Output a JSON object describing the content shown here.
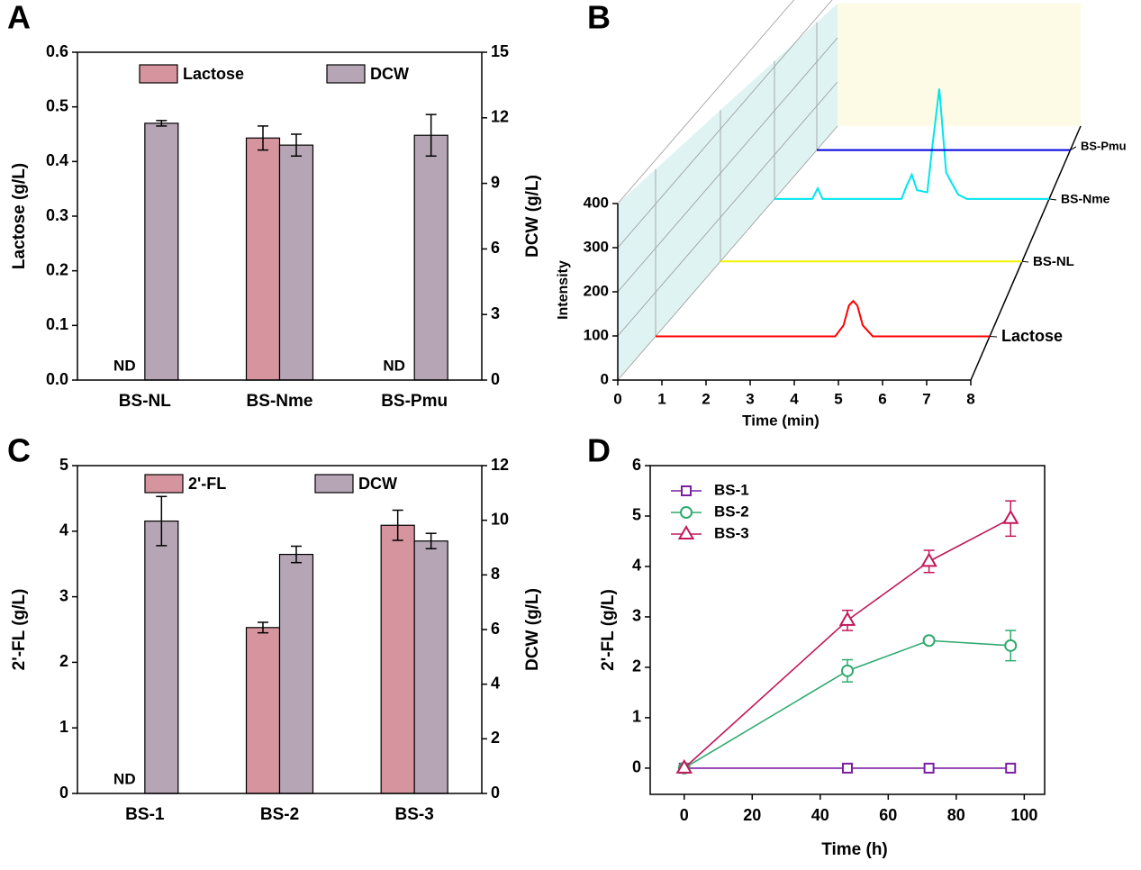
{
  "chart_data": [
    {
      "type": "bar",
      "panel": "A",
      "categories": [
        "BS-NL",
        "BS-Nme",
        "BS-Pmu"
      ],
      "ylabel": "Lactose (g/L)",
      "y2label": "DCW (g/L)",
      "ylim": [
        0,
        0.6
      ],
      "yticks": [
        {
          "value": 0,
          "label": "0.0"
        },
        0.1,
        0.2,
        0.3,
        0.4,
        0.5,
        0.6
      ],
      "y2lim": [
        0,
        15
      ],
      "y2ticks": [
        0,
        3,
        6,
        9,
        12,
        15
      ],
      "series": [
        {
          "name": "Lactose",
          "color": "#d6949e",
          "values": [
            null,
            0.443,
            null
          ],
          "value_labels": [
            "ND",
            null,
            "ND"
          ],
          "errors": [
            null,
            0.022,
            null
          ]
        },
        {
          "name": "DCW",
          "color": "#b5a5b5",
          "axis": "y2",
          "values": [
            11.75,
            10.75,
            11.2
          ],
          "errors": [
            0.125,
            0.5,
            0.95
          ]
        }
      ]
    },
    {
      "type": "waterfall",
      "panel": "B",
      "xlabel": "Time (min)",
      "ylabel": "Intensity",
      "xlim": [
        0,
        8
      ],
      "xticks": [
        0,
        1,
        2,
        3,
        4,
        5,
        6,
        7,
        8
      ],
      "ylim": [
        0,
        400
      ],
      "yticks": [
        0,
        100,
        200,
        300,
        400
      ],
      "series": [
        {
          "name": "Lactose",
          "color": "#ff0000",
          "x": [
            0,
            4.3,
            4.5,
            4.63,
            4.73,
            4.83,
            4.96,
            5.2,
            8
          ],
          "values": [
            0,
            0,
            25,
            70,
            80,
            70,
            25,
            0,
            0
          ]
        },
        {
          "name": "BS-NL",
          "color": "#f2f200",
          "x": [
            0,
            8
          ],
          "values": [
            0,
            0
          ]
        },
        {
          "name": "BS-Nme",
          "color": "#00e5f0",
          "x": [
            0,
            1.1,
            1.26,
            1.4,
            3.7,
            3.85,
            4.0,
            4.15,
            4.45,
            4.6,
            4.8,
            5.0,
            5.17,
            5.35,
            5.6,
            8
          ],
          "values": [
            0,
            0,
            24,
            0,
            0,
            30,
            55,
            20,
            15,
            120,
            250,
            60,
            35,
            10,
            0,
            0
          ]
        },
        {
          "name": "BS-Pmu",
          "color": "#0000e0",
          "x": [
            0,
            8
          ],
          "values": [
            0,
            0
          ]
        }
      ]
    },
    {
      "type": "bar",
      "panel": "C",
      "categories": [
        "BS-1",
        "BS-2",
        "BS-3"
      ],
      "ylabel": "2'-FL (g/L)",
      "y2label": "DCW (g/L)",
      "ylim": [
        0,
        5
      ],
      "yticks": [
        0,
        1,
        2,
        3,
        4,
        5
      ],
      "y2lim": [
        0,
        12
      ],
      "y2ticks": [
        0,
        2,
        4,
        6,
        8,
        10,
        12
      ],
      "series": [
        {
          "name": "2'-FL",
          "color": "#d6949e",
          "values": [
            null,
            2.53,
            4.09
          ],
          "value_labels": [
            "ND",
            null,
            null
          ],
          "errors": [
            null,
            0.08,
            0.23
          ]
        },
        {
          "name": "DCW",
          "color": "#b5a5b5",
          "axis": "y2",
          "values": [
            9.97,
            8.75,
            9.24
          ],
          "errors": [
            0.9,
            0.3,
            0.28
          ]
        }
      ]
    },
    {
      "type": "line",
      "panel": "D",
      "xlabel": "Time (h)",
      "ylabel": "2'-FL (g/L)",
      "x": [
        0,
        48,
        72,
        96
      ],
      "xlim": [
        -10,
        106
      ],
      "xticks": [
        0,
        20,
        40,
        60,
        80,
        100
      ],
      "ylim": [
        -0.52,
        6
      ],
      "yticks": [
        0,
        1,
        2,
        3,
        4,
        5,
        6
      ],
      "series": [
        {
          "name": "BS-1",
          "color": "#7b1fa2",
          "marker": "square",
          "values": [
            0,
            0,
            0,
            0
          ]
        },
        {
          "name": "BS-2",
          "color": "#2eaa6e",
          "marker": "circle",
          "values": [
            0,
            1.93,
            2.53,
            2.43
          ],
          "errors": [
            0,
            0.22,
            0.05,
            0.3
          ]
        },
        {
          "name": "BS-3",
          "color": "#c2185b",
          "marker": "triangle",
          "values": [
            0,
            2.93,
            4.1,
            4.95
          ],
          "errors": [
            0,
            0.2,
            0.22,
            0.35
          ]
        }
      ]
    }
  ]
}
